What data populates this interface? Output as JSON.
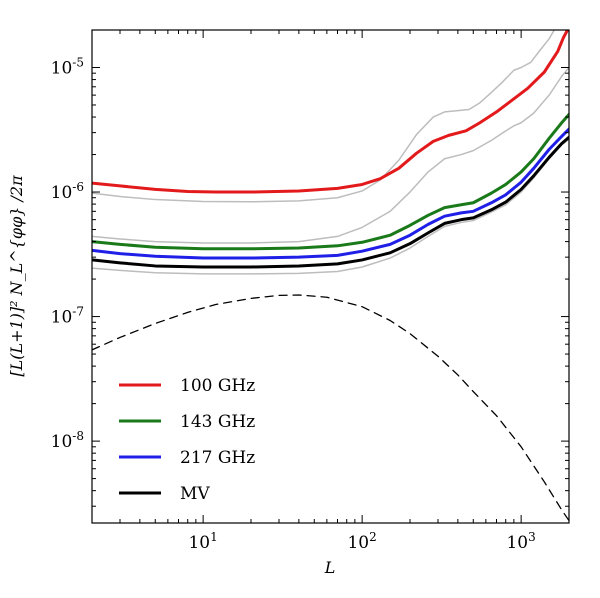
{
  "chart_data": {
    "type": "line",
    "title": "",
    "xlabel": "L",
    "ylabel": "[L(L+1)]² N_L^{φφ} /2π",
    "xscale": "log",
    "yscale": "log",
    "xlim": [
      2,
      2000
    ],
    "ylim": [
      2.2e-09,
      2e-05
    ],
    "grid": false,
    "legend_position": "lower-left",
    "x_ticks": [
      {
        "base": "10",
        "exp": "1",
        "value": 10
      },
      {
        "base": "10",
        "exp": "2",
        "value": 100
      },
      {
        "base": "10",
        "exp": "3",
        "value": 1000
      }
    ],
    "y_ticks": [
      {
        "base": "10",
        "exp": "-5",
        "value": 1e-05
      },
      {
        "base": "10",
        "exp": "-6",
        "value": 1e-06
      },
      {
        "base": "10",
        "exp": "-7",
        "value": 1e-07
      },
      {
        "base": "10",
        "exp": "-8",
        "value": 1e-08
      }
    ],
    "series": [
      {
        "name": "100 GHz",
        "color": "#e31a1c",
        "width": 3,
        "style": "solid",
        "legend": true,
        "points": [
          [
            2,
            1.18e-06
          ],
          [
            3,
            1.12e-06
          ],
          [
            5,
            1.05e-06
          ],
          [
            8,
            1.01e-06
          ],
          [
            12,
            1e-06
          ],
          [
            20,
            1e-06
          ],
          [
            40,
            1.02e-06
          ],
          [
            70,
            1.07e-06
          ],
          [
            100,
            1.15e-06
          ],
          [
            130,
            1.28e-06
          ],
          [
            170,
            1.55e-06
          ],
          [
            220,
            2.05e-06
          ],
          [
            280,
            2.55e-06
          ],
          [
            350,
            2.85e-06
          ],
          [
            450,
            3.1e-06
          ],
          [
            550,
            3.6e-06
          ],
          [
            700,
            4.4e-06
          ],
          [
            900,
            5.6e-06
          ],
          [
            1100,
            6.8e-06
          ],
          [
            1400,
            9.2e-06
          ],
          [
            1700,
            1.35e-05
          ],
          [
            1850,
            1.75e-05
          ],
          [
            2000,
            2.1e-05
          ]
        ]
      },
      {
        "name": "143 GHz",
        "color": "#1a7a1a",
        "width": 3,
        "style": "solid",
        "legend": true,
        "points": [
          [
            2,
            4e-07
          ],
          [
            3,
            3.8e-07
          ],
          [
            5,
            3.6e-07
          ],
          [
            10,
            3.5e-07
          ],
          [
            20,
            3.5e-07
          ],
          [
            40,
            3.55e-07
          ],
          [
            70,
            3.7e-07
          ],
          [
            100,
            3.95e-07
          ],
          [
            150,
            4.5e-07
          ],
          [
            200,
            5.4e-07
          ],
          [
            260,
            6.5e-07
          ],
          [
            330,
            7.5e-07
          ],
          [
            420,
            7.9e-07
          ],
          [
            500,
            8.2e-07
          ],
          [
            650,
            9.8e-07
          ],
          [
            800,
            1.15e-06
          ],
          [
            1000,
            1.45e-06
          ],
          [
            1200,
            1.85e-06
          ],
          [
            1500,
            2.7e-06
          ],
          [
            1800,
            3.6e-06
          ],
          [
            2000,
            4.2e-06
          ]
        ]
      },
      {
        "name": "217 GHz",
        "color": "#1f1fe8",
        "width": 3,
        "style": "solid",
        "legend": true,
        "points": [
          [
            2,
            3.4e-07
          ],
          [
            3,
            3.2e-07
          ],
          [
            5,
            3.05e-07
          ],
          [
            10,
            2.95e-07
          ],
          [
            20,
            2.95e-07
          ],
          [
            40,
            3e-07
          ],
          [
            70,
            3.1e-07
          ],
          [
            100,
            3.35e-07
          ],
          [
            150,
            3.8e-07
          ],
          [
            200,
            4.5e-07
          ],
          [
            260,
            5.5e-07
          ],
          [
            330,
            6.4e-07
          ],
          [
            420,
            6.8e-07
          ],
          [
            500,
            7e-07
          ],
          [
            650,
            8.2e-07
          ],
          [
            800,
            9.5e-07
          ],
          [
            1000,
            1.2e-06
          ],
          [
            1200,
            1.55e-06
          ],
          [
            1500,
            2.2e-06
          ],
          [
            1800,
            2.8e-06
          ],
          [
            2000,
            3.2e-06
          ]
        ]
      },
      {
        "name": "MV",
        "color": "#000000",
        "width": 3,
        "style": "solid",
        "legend": true,
        "points": [
          [
            2,
            2.85e-07
          ],
          [
            3,
            2.7e-07
          ],
          [
            5,
            2.55e-07
          ],
          [
            10,
            2.5e-07
          ],
          [
            20,
            2.5e-07
          ],
          [
            40,
            2.55e-07
          ],
          [
            70,
            2.65e-07
          ],
          [
            100,
            2.85e-07
          ],
          [
            150,
            3.25e-07
          ],
          [
            200,
            3.85e-07
          ],
          [
            260,
            4.7e-07
          ],
          [
            330,
            5.6e-07
          ],
          [
            420,
            6e-07
          ],
          [
            500,
            6.2e-07
          ],
          [
            650,
            7.2e-07
          ],
          [
            800,
            8.3e-07
          ],
          [
            1000,
            1.05e-06
          ],
          [
            1200,
            1.35e-06
          ],
          [
            1500,
            1.9e-06
          ],
          [
            1800,
            2.45e-06
          ],
          [
            2000,
            2.75e-06
          ]
        ]
      },
      {
        "name": "",
        "color": "#bdbdbd",
        "width": 1.5,
        "style": "solid",
        "legend": false,
        "points": [
          [
            2,
            9.8e-07
          ],
          [
            3,
            9.2e-07
          ],
          [
            5,
            8.7e-07
          ],
          [
            10,
            8.4e-07
          ],
          [
            20,
            8.35e-07
          ],
          [
            40,
            8.5e-07
          ],
          [
            70,
            9e-07
          ],
          [
            100,
            1.02e-06
          ],
          [
            130,
            1.25e-06
          ],
          [
            170,
            1.8e-06
          ],
          [
            220,
            2.9e-06
          ],
          [
            280,
            4e-06
          ],
          [
            330,
            4.4e-06
          ],
          [
            400,
            4.5e-06
          ],
          [
            470,
            4.6e-06
          ],
          [
            550,
            5.2e-06
          ],
          [
            650,
            6.3e-06
          ],
          [
            760,
            7.6e-06
          ],
          [
            900,
            9.5e-06
          ],
          [
            1000,
            1e-05
          ],
          [
            1150,
            1.1e-05
          ],
          [
            1300,
            1.35e-05
          ],
          [
            1500,
            1.7e-05
          ],
          [
            1650,
            2.1e-05
          ]
        ]
      },
      {
        "name": "",
        "color": "#bdbdbd",
        "width": 1.5,
        "style": "solid",
        "legend": false,
        "points": [
          [
            2,
            4.4e-07
          ],
          [
            3,
            4.2e-07
          ],
          [
            5,
            4e-07
          ],
          [
            10,
            3.9e-07
          ],
          [
            20,
            3.9e-07
          ],
          [
            40,
            4e-07
          ],
          [
            70,
            4.4e-07
          ],
          [
            100,
            5.2e-07
          ],
          [
            150,
            7e-07
          ],
          [
            200,
            1e-06
          ],
          [
            260,
            1.45e-06
          ],
          [
            330,
            1.85e-06
          ],
          [
            420,
            2e-06
          ],
          [
            500,
            2.15e-06
          ],
          [
            650,
            2.6e-06
          ],
          [
            800,
            3.1e-06
          ],
          [
            900,
            3.4e-06
          ],
          [
            1000,
            3.6e-06
          ],
          [
            1200,
            4.3e-06
          ],
          [
            1500,
            6e-06
          ],
          [
            1800,
            8.5e-06
          ],
          [
            2000,
            1e-05
          ]
        ]
      },
      {
        "name": "",
        "color": "#bdbdbd",
        "width": 1.5,
        "style": "solid",
        "legend": false,
        "points": [
          [
            2,
            2.45e-07
          ],
          [
            3,
            2.35e-07
          ],
          [
            5,
            2.25e-07
          ],
          [
            10,
            2.2e-07
          ],
          [
            20,
            2.2e-07
          ],
          [
            40,
            2.22e-07
          ],
          [
            70,
            2.3e-07
          ],
          [
            100,
            2.5e-07
          ],
          [
            150,
            2.95e-07
          ],
          [
            200,
            3.55e-07
          ],
          [
            260,
            4.4e-07
          ],
          [
            330,
            5.3e-07
          ],
          [
            420,
            5.7e-07
          ],
          [
            500,
            5.9e-07
          ],
          [
            650,
            6.9e-07
          ],
          [
            800,
            7.9e-07
          ],
          [
            1000,
            1e-06
          ],
          [
            1200,
            1.3e-06
          ],
          [
            1500,
            1.85e-06
          ],
          [
            1800,
            2.4e-06
          ],
          [
            2000,
            2.65e-06
          ]
        ]
      },
      {
        "name": "",
        "color": "#000000",
        "width": 1.3,
        "style": "dashed",
        "legend": false,
        "points": [
          [
            2,
            5.4e-08
          ],
          [
            3,
            6.8e-08
          ],
          [
            5,
            8.8e-08
          ],
          [
            8,
            1.08e-07
          ],
          [
            12,
            1.25e-07
          ],
          [
            20,
            1.4e-07
          ],
          [
            30,
            1.48e-07
          ],
          [
            40,
            1.49e-07
          ],
          [
            60,
            1.43e-07
          ],
          [
            100,
            1.2e-07
          ],
          [
            150,
            9.3e-08
          ],
          [
            200,
            7.3e-08
          ],
          [
            300,
            4.8e-08
          ],
          [
            400,
            3.4e-08
          ],
          [
            500,
            2.5e-08
          ],
          [
            700,
            1.6e-08
          ],
          [
            1000,
            9e-09
          ],
          [
            1400,
            4.7e-09
          ],
          [
            1800,
            2.8e-09
          ],
          [
            2000,
            2.3e-09
          ]
        ]
      }
    ]
  }
}
